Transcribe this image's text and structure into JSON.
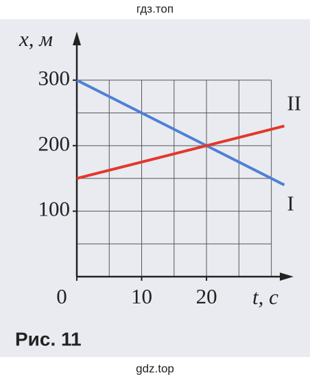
{
  "header": "гдз.топ",
  "chart_data": {
    "type": "line",
    "x_label": "x, м",
    "t_label": "t, с",
    "x": [
      0,
      32
    ],
    "series": [
      {
        "name": "I",
        "color": "#4f7fd6",
        "values": [
          300,
          140
        ]
      },
      {
        "name": "II",
        "color": "#e2382b",
        "values": [
          150,
          230
        ]
      }
    ],
    "xlim": [
      0,
      33
    ],
    "ylim": [
      0,
      370
    ],
    "xticks": [
      0,
      10,
      20
    ],
    "yticks": [
      100,
      200,
      300
    ],
    "xgrid": [
      5,
      10,
      15,
      20,
      25,
      30
    ],
    "ygrid": [
      50,
      100,
      150,
      200,
      250,
      300
    ],
    "grid": true
  },
  "caption": "Рис. 11",
  "footer": "gdz.top"
}
